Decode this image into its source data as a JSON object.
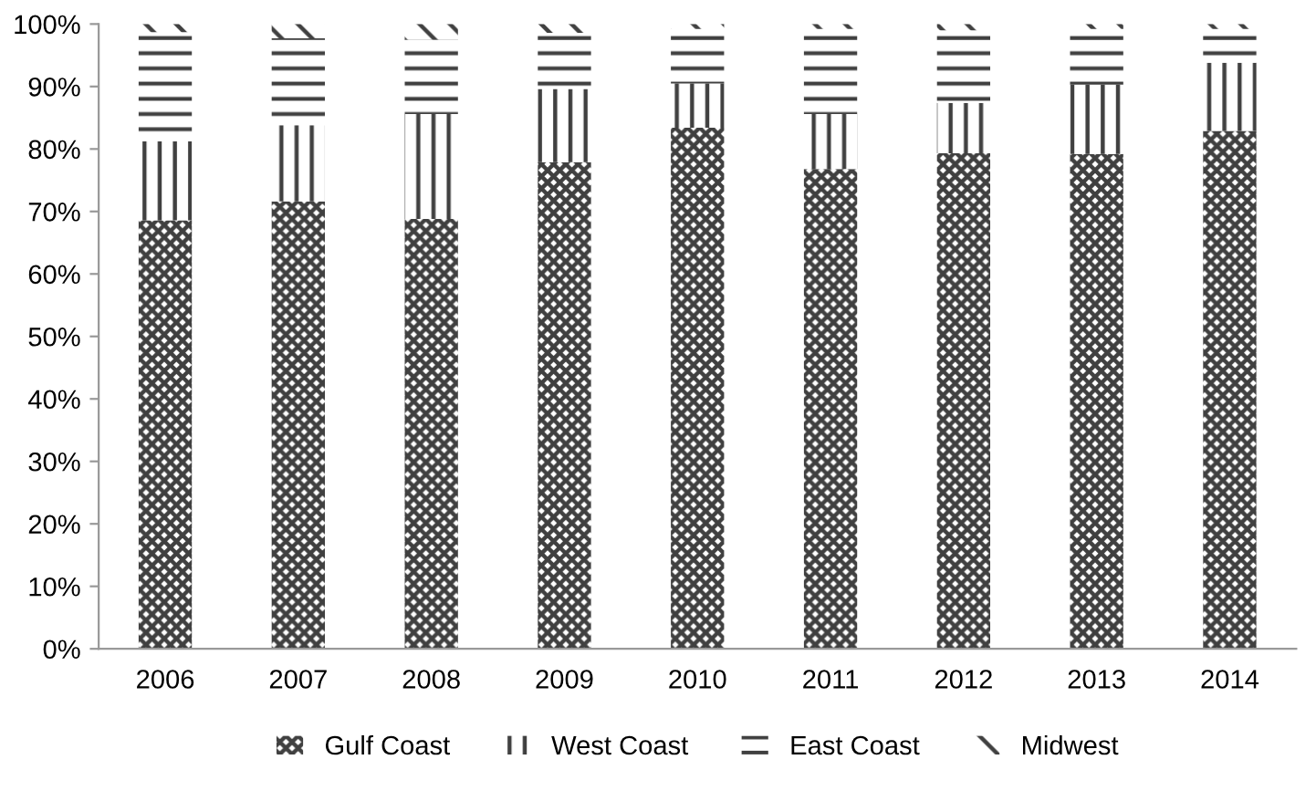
{
  "chart_data": {
    "type": "bar",
    "stacked": true,
    "categories": [
      "2006",
      "2007",
      "2008",
      "2009",
      "2010",
      "2011",
      "2012",
      "2013",
      "2014"
    ],
    "series": [
      {
        "name": "Gulf Coast",
        "color": "#404040",
        "values": [
          68.6,
          71.6,
          68.8,
          77.9,
          83.4,
          76.8,
          79.3,
          79.2,
          82.9
        ]
      },
      {
        "name": "West Coast",
        "color": "#404040",
        "values": [
          12.6,
          12.2,
          16.8,
          11.7,
          7.1,
          8.8,
          8.1,
          11.1,
          10.9
        ]
      },
      {
        "name": "East Coast",
        "color": "#404040",
        "values": [
          17.5,
          13.9,
          11.9,
          9.0,
          8.7,
          13.6,
          11.6,
          8.9,
          5.4
        ]
      },
      {
        "name": "Midwest",
        "color": "#404040",
        "values": [
          1.3,
          2.3,
          2.5,
          1.4,
          0.8,
          0.8,
          1.0,
          0.8,
          0.8
        ]
      }
    ],
    "ylim": [
      0,
      100
    ],
    "yticks": [
      {
        "value": 0,
        "label": "0%"
      },
      {
        "value": 10,
        "label": "10%"
      },
      {
        "value": 20,
        "label": "20%"
      },
      {
        "value": 30,
        "label": "30%"
      },
      {
        "value": 40,
        "label": "40%"
      },
      {
        "value": 50,
        "label": "50%"
      },
      {
        "value": 60,
        "label": "60%"
      },
      {
        "value": 70,
        "label": "70%"
      },
      {
        "value": 80,
        "label": "80%"
      },
      {
        "value": 90,
        "label": "90%"
      },
      {
        "value": 100,
        "label": "100%"
      }
    ],
    "legend": "bottom"
  }
}
